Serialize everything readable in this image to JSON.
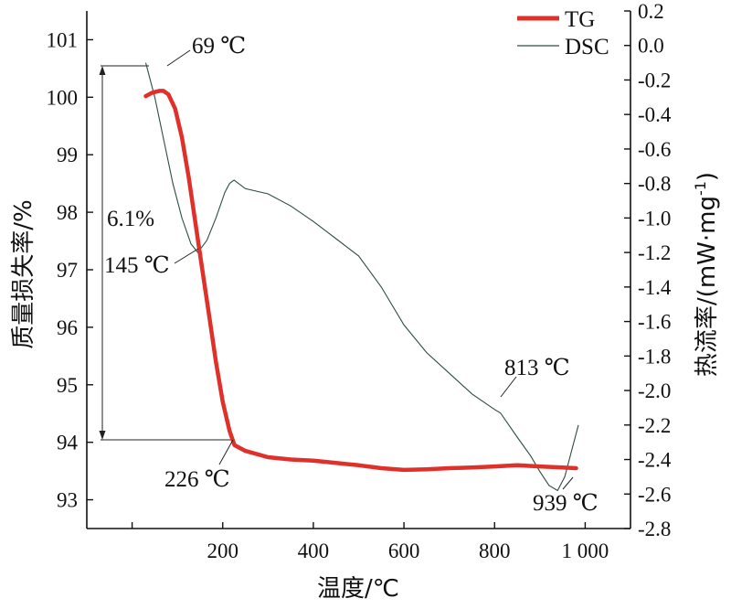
{
  "chart_data": {
    "type": "line",
    "xlabel": "温度/℃",
    "ylabel_left": "质量损失率/%",
    "ylabel_right": "热流率/(mW·mg",
    "ylabel_right_sup": "-1",
    "ylabel_right_close": ")",
    "xlim": [
      -100,
      1100
    ],
    "ylim_left": [
      92.5,
      101.5
    ],
    "ylim_right": [
      -2.8,
      0.2
    ],
    "x_ticks": [
      0,
      200,
      400,
      600,
      800,
      1000
    ],
    "x_tick_labels": [
      "",
      "200",
      "400",
      "600",
      "800",
      "1 000"
    ],
    "y_left_ticks": [
      93,
      94,
      95,
      96,
      97,
      98,
      99,
      100,
      101
    ],
    "y_left_tick_labels": [
      "93",
      "94",
      "95",
      "96",
      "97",
      "98",
      "99",
      "100",
      "101"
    ],
    "y_right_ticks": [
      0.2,
      0.0,
      -0.2,
      -0.4,
      -0.6,
      -0.8,
      -1.0,
      -1.2,
      -1.4,
      -1.6,
      -1.8,
      -2.0,
      -2.2,
      -2.4,
      -2.6,
      -2.8
    ],
    "y_right_tick_labels": [
      "0.2",
      "0.0",
      "-0.2",
      "-0.4",
      "-0.6",
      "-0.8",
      "-1.0",
      "-1.2",
      "-1.4",
      "-1.6",
      "-1.8",
      "-2.0",
      "-2.2",
      "-2.4",
      "-2.6",
      "-2.8"
    ],
    "legend_position": "top-right",
    "series": [
      {
        "name": "TG",
        "axis": "left",
        "color": "#e0302a",
        "x": [
          30,
          45,
          60,
          69,
          80,
          95,
          110,
          125,
          140,
          155,
          170,
          185,
          200,
          215,
          226,
          250,
          300,
          350,
          400,
          450,
          500,
          550,
          600,
          650,
          700,
          750,
          800,
          850,
          900,
          950,
          980
        ],
        "y": [
          100.02,
          100.08,
          100.11,
          100.11,
          100.05,
          99.8,
          99.3,
          98.6,
          97.8,
          97.0,
          96.2,
          95.4,
          94.7,
          94.2,
          93.95,
          93.85,
          93.74,
          93.7,
          93.68,
          93.64,
          93.6,
          93.55,
          93.52,
          93.53,
          93.55,
          93.56,
          93.58,
          93.6,
          93.58,
          93.56,
          93.55
        ]
      },
      {
        "name": "DSC",
        "axis": "right",
        "color": "#2e4e3e",
        "x": [
          30,
          50,
          70,
          90,
          110,
          130,
          145,
          165,
          185,
          205,
          215,
          225,
          250,
          300,
          350,
          400,
          450,
          500,
          550,
          600,
          650,
          700,
          750,
          800,
          813,
          850,
          880,
          900,
          920,
          939,
          955,
          970,
          985
        ],
        "y": [
          -0.1,
          -0.3,
          -0.55,
          -0.8,
          -1.0,
          -1.15,
          -1.2,
          -1.13,
          -1.0,
          -0.85,
          -0.8,
          -0.78,
          -0.83,
          -0.86,
          -0.93,
          -1.02,
          -1.12,
          -1.22,
          -1.4,
          -1.62,
          -1.78,
          -1.9,
          -2.02,
          -2.11,
          -2.13,
          -2.27,
          -2.38,
          -2.47,
          -2.55,
          -2.58,
          -2.5,
          -2.35,
          -2.2
        ]
      }
    ],
    "annotations": [
      {
        "text": "69 ℃"
      },
      {
        "text": "145 ℃"
      },
      {
        "text": "226 ℃"
      },
      {
        "text": "813 ℃"
      },
      {
        "text": "939 ℃"
      },
      {
        "text": "6.1%"
      }
    ]
  }
}
